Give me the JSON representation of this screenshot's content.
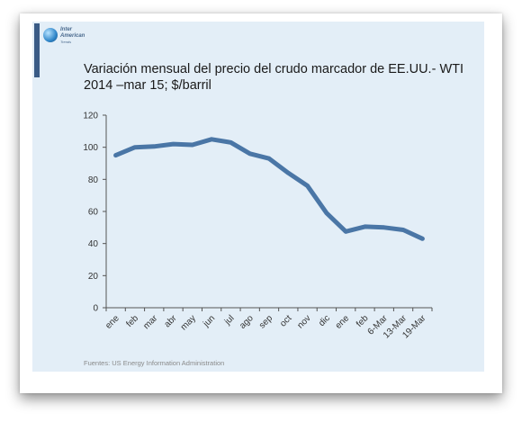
{
  "logo": {
    "line1": "Inter",
    "line2": "American",
    "line3": "Trends"
  },
  "source": "Fuentes: US Energy Information Administration",
  "colors": {
    "panel": "#e3eef7",
    "accent": "#3a5b86",
    "line": "#4a76a6"
  },
  "chart_data": {
    "type": "line",
    "title": "Variación mensual del precio del crudo marcador de EE.UU.- WTI 2014 –mar 15; $/barril",
    "title_lines": [
      "Variación mensual del precio del crudo marcador de EE.UU.- WTI",
      "2014 –mar 15; $/barril"
    ],
    "categories": [
      "ene",
      "feb",
      "mar",
      "abr",
      "may",
      "jun",
      "jul",
      "ago",
      "sep",
      "oct",
      "nov",
      "dic",
      "ene",
      "feb",
      "6-Mar",
      "13-Mar",
      "19-Mar"
    ],
    "series": [
      {
        "values": [
          95,
          100,
          100.5,
          102,
          101.5,
          105,
          103,
          96,
          93,
          84,
          76,
          59,
          47.5,
          50.5,
          50,
          48.5,
          43
        ]
      }
    ],
    "ylim": [
      0,
      120
    ],
    "yticks": [
      0,
      20,
      40,
      60,
      80,
      100,
      120
    ],
    "grid": false,
    "xlabel": "",
    "ylabel": ""
  }
}
